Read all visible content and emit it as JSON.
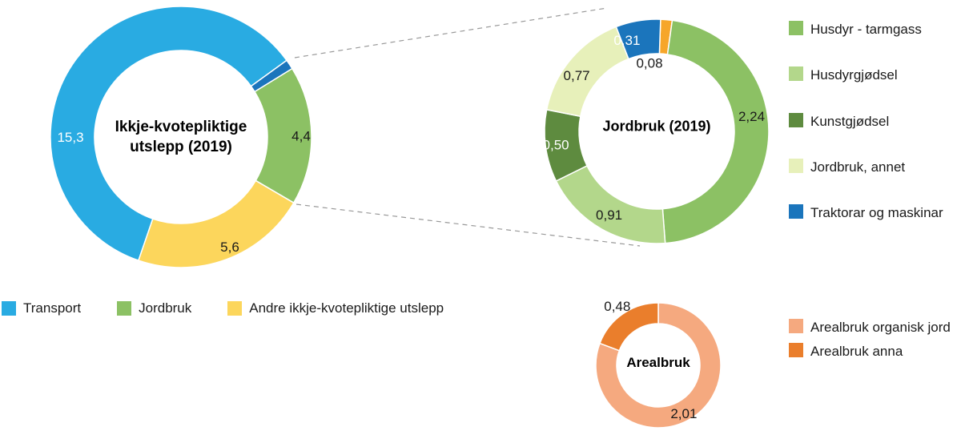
{
  "figure": {
    "background_color": "#ffffff",
    "connector_line_color": "#999999"
  },
  "chart_data": [
    {
      "id": "ikkje",
      "type": "pie",
      "subtype": "donut",
      "title": "Ikkje-kvotepliktige utslepp (2019)",
      "start_angle_deg": 199,
      "segments": [
        {
          "name": "Transport",
          "value": 15.3,
          "display": "15,3",
          "color": "#29ABE2",
          "text_color": "#ffffff"
        },
        {
          "name": "unlabelled small dark segment",
          "value": 0.31,
          "display": "",
          "color": "#1B75BC",
          "text_color": "#ffffff"
        },
        {
          "name": "Jordbruk",
          "value": 4.4,
          "display": "4,4",
          "color": "#8CC164",
          "text_color": "#1a1a1a"
        },
        {
          "name": "Andre ikkje-kvotepliktige utslepp",
          "value": 5.6,
          "display": "5,6",
          "color": "#FCD65C",
          "text_color": "#1a1a1a"
        }
      ],
      "legend": {
        "position": "bottom-left-horizontal",
        "items": [
          {
            "label": "Transport",
            "color": "#29ABE2"
          },
          {
            "label": "Jordbruk",
            "color": "#8CC164"
          },
          {
            "label": "Andre ikkje-kvotepliktige utslepp",
            "color": "#FCD65C"
          }
        ]
      }
    },
    {
      "id": "jordbruk",
      "type": "pie",
      "subtype": "donut",
      "title": "Jordbruk (2019)",
      "start_angle_deg": 2,
      "segments": [
        {
          "name": "unlabelled orange sliver",
          "value": 0.08,
          "display": "0,08",
          "color": "#F6A62A",
          "text_color": "#1a1a1a"
        },
        {
          "name": "Husdyr - tarmgass",
          "value": 2.24,
          "display": "2,24",
          "color": "#8CC164",
          "text_color": "#1a1a1a"
        },
        {
          "name": "Husdyrgjødsel",
          "value": 0.91,
          "display": "0,91",
          "color": "#B3D78B",
          "text_color": "#1a1a1a"
        },
        {
          "name": "Kunstgjødsel",
          "value": 0.5,
          "display": "0,50",
          "color": "#5E8B3F",
          "text_color": "#ffffff"
        },
        {
          "name": "Jordbruk, annet",
          "value": 0.77,
          "display": "0,77",
          "color": "#E7F0BA",
          "text_color": "#1a1a1a"
        },
        {
          "name": "Traktorar og maskinar",
          "value": 0.31,
          "display": "0,31",
          "color": "#1B75BC",
          "text_color": "#ffffff"
        }
      ],
      "legend": {
        "position": "right-vertical",
        "items": [
          {
            "label": "Husdyr - tarmgass",
            "color": "#8CC164"
          },
          {
            "label": "Husdyrgjødsel",
            "color": "#B3D78B"
          },
          {
            "label": "Kunstgjødsel",
            "color": "#5E8B3F"
          },
          {
            "label": "Jordbruk, annet",
            "color": "#E7F0BA"
          },
          {
            "label": "Traktorar og maskinar",
            "color": "#1B75BC"
          }
        ]
      }
    },
    {
      "id": "arealbruk",
      "type": "pie",
      "subtype": "donut",
      "title": "Arealbruk",
      "start_angle_deg": 0,
      "segments": [
        {
          "name": "Arealbruk organisk jord",
          "value": 2.01,
          "display": "2,01",
          "color": "#F5A97F",
          "text_color": "#1a1a1a"
        },
        {
          "name": "Arealbruk anna",
          "value": 0.48,
          "display": "0,48",
          "color": "#EA7E2C",
          "text_color": "#1a1a1a"
        }
      ],
      "legend": {
        "position": "right-of-chart",
        "items": [
          {
            "label": "Arealbruk organisk jord",
            "color": "#F5A97F"
          },
          {
            "label": "Arealbruk anna",
            "color": "#EA7E2C"
          }
        ]
      }
    }
  ]
}
